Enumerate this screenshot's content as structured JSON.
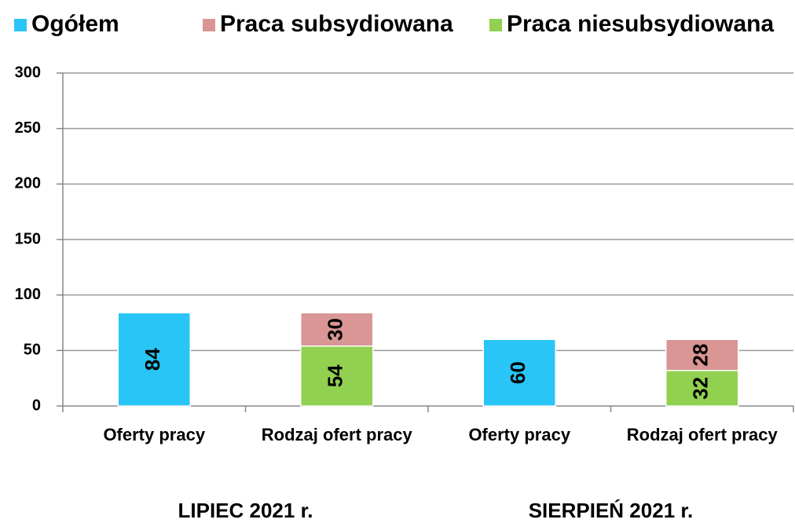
{
  "chart_data": {
    "type": "stacked_bar",
    "categories": [
      "Oferty pracy",
      "Rodzaj ofert pracy",
      "Oferty pracy",
      "Rodzaj ofert pracy"
    ],
    "groups": [
      "LIPIEC 2021 r.",
      "SIERPIEŃ 2021 r."
    ],
    "series": [
      {
        "name": "Ogółem",
        "color": "#29c5f6",
        "values": [
          84,
          null,
          60,
          null
        ]
      },
      {
        "name": "Praca subsydiowana",
        "color": "#d99694",
        "values": [
          null,
          30,
          null,
          28
        ]
      },
      {
        "name": "Praca niesubsydiowana",
        "color": "#92d050",
        "values": [
          null,
          54,
          null,
          32
        ]
      }
    ],
    "ylim": [
      0,
      300
    ],
    "yticks": [
      0,
      50,
      100,
      150,
      200,
      250,
      300
    ],
    "grid": true,
    "legend": "top"
  }
}
